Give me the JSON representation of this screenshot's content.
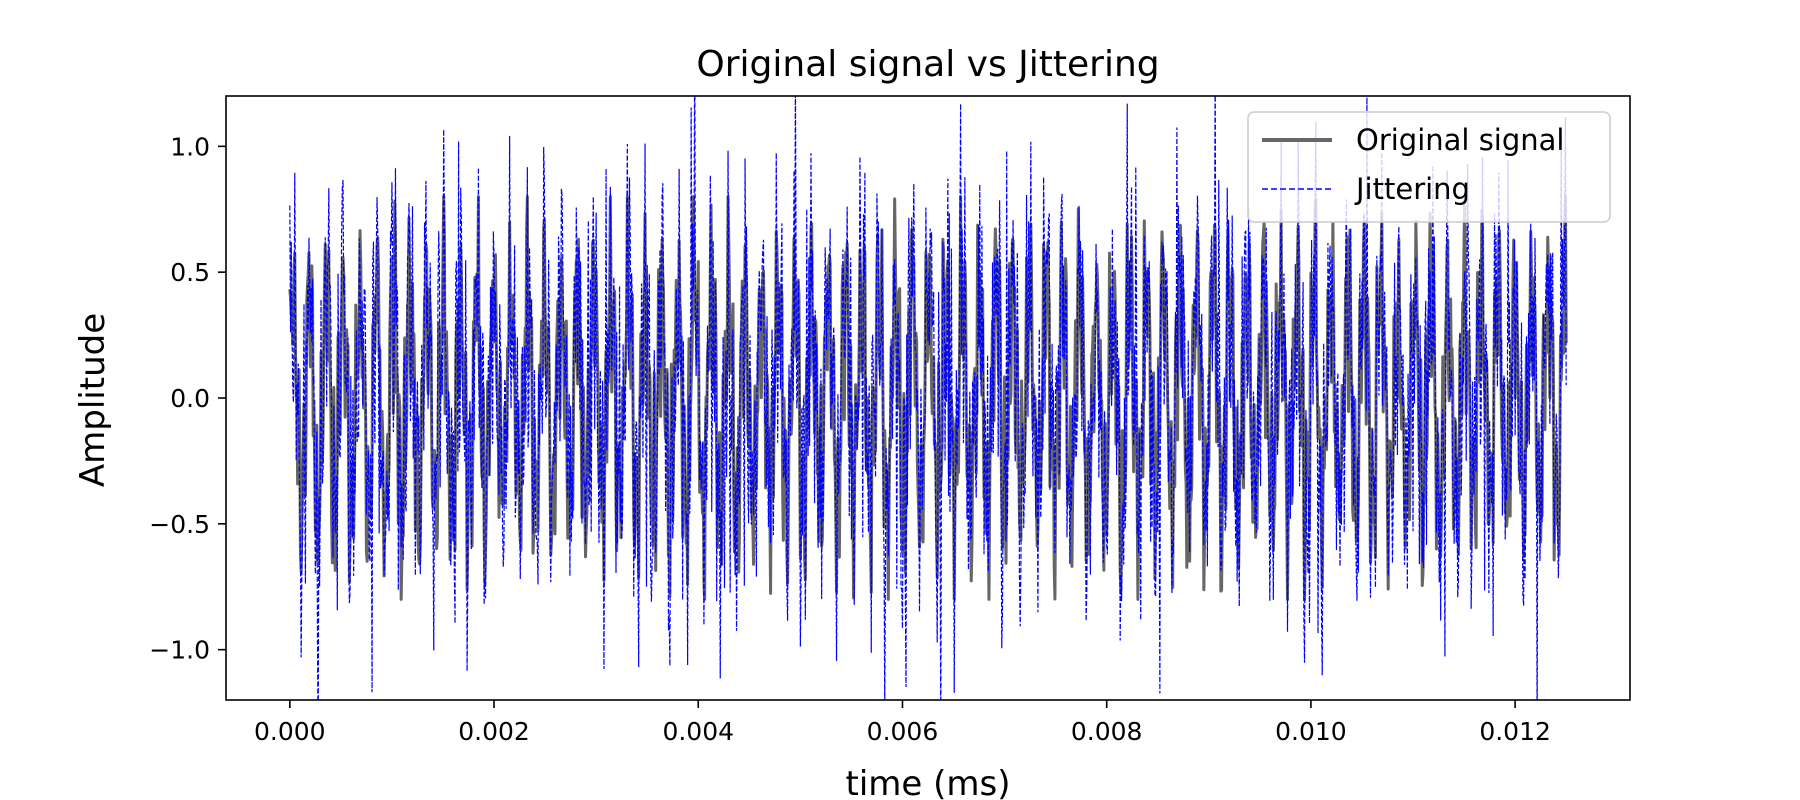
{
  "chart_data": {
    "type": "line",
    "title": "Original signal vs Jittering",
    "xlabel": "time (ms)",
    "ylabel": "Amplitude",
    "xlim": [
      -0.000625,
      0.013125
    ],
    "ylim": [
      -1.2,
      1.2
    ],
    "x_ticks": [
      {
        "value": 0.0,
        "label": "0.000"
      },
      {
        "value": 0.002,
        "label": "0.002"
      },
      {
        "value": 0.004,
        "label": "0.004"
      },
      {
        "value": 0.006,
        "label": "0.006"
      },
      {
        "value": 0.008,
        "label": "0.008"
      },
      {
        "value": 0.01,
        "label": "0.010"
      },
      {
        "value": 0.012,
        "label": "0.012"
      }
    ],
    "y_ticks": [
      {
        "value": 1.0,
        "label": "1.0"
      },
      {
        "value": 0.5,
        "label": "0.5"
      },
      {
        "value": 0.0,
        "label": "0.0"
      },
      {
        "value": -0.5,
        "label": "−0.5"
      },
      {
        "value": -1.0,
        "label": "−1.0"
      }
    ],
    "grid": false,
    "legend_position": "top-right",
    "x_range": [
      0.0,
      0.0125
    ],
    "series": [
      {
        "name": "Original signal",
        "color": "#666666",
        "style": "solid",
        "amplitude_range": [
          -0.8,
          0.8
        ]
      },
      {
        "name": "Jittering",
        "color": "#0000ff",
        "style": "dashed",
        "amplitude_range": [
          -1.2,
          1.2
        ]
      }
    ]
  }
}
